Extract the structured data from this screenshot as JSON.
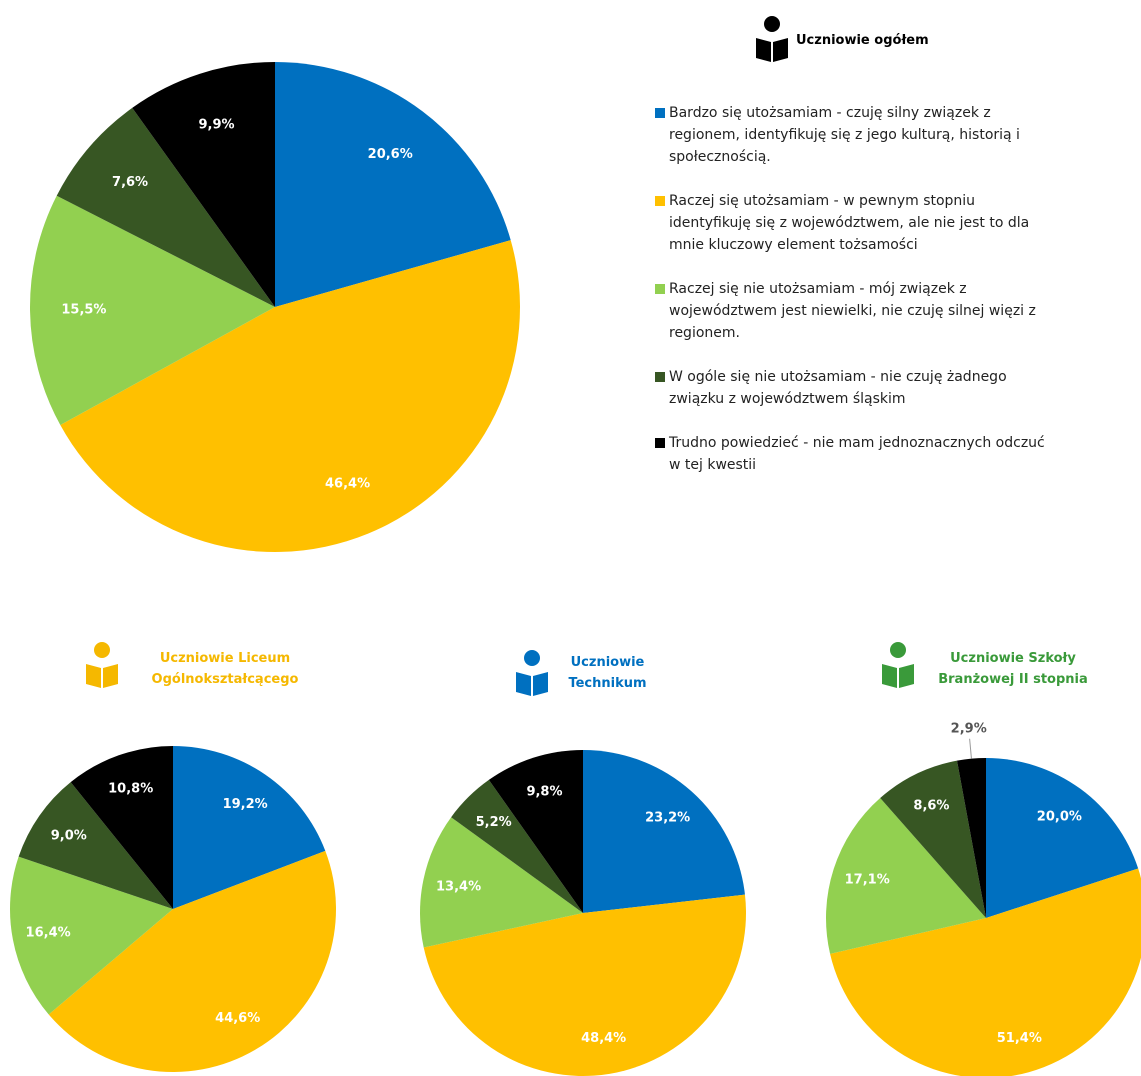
{
  "chart_data": [
    {
      "type": "pie",
      "title": "Uczniowie ogółem",
      "title_color": "#000000",
      "categories": [
        "Bardzo się utożsamiam - czuję silny związek z regionem, identyfikuję się z jego kulturą, historią i społecznością.",
        "Raczej się utożsamiam - w pewnym stopniu identyfikuję się z województwem, ale nie jest to dla mnie kluczowy element tożsamości",
        "Raczej się nie utożsamiam - mój związek z województwem jest niewielki, nie czuję silnej więzi z regionem.",
        "W ogóle się nie utożsamiam - nie czuję żadnego związku z województwem śląskim",
        "Trudno powiedzieć - nie mam jednoznacznych odczuć w tej kwestii"
      ],
      "values": [
        20.6,
        46.4,
        15.5,
        7.6,
        9.9
      ],
      "value_labels": [
        "20,6%",
        "46,4%",
        "15,5%",
        "7,6%",
        "9,9%"
      ],
      "colors": [
        "#0070c0",
        "#ffc000",
        "#92d050",
        "#375623",
        "#000000"
      ]
    },
    {
      "type": "pie",
      "title": "Uczniowie Liceum Ogólnokształcącego",
      "title_color": "#f5b800",
      "values": [
        19.2,
        44.6,
        16.4,
        9.0,
        10.8
      ],
      "value_labels": [
        "19,2%",
        "44,6%",
        "16,4%",
        "9,0%",
        "10,8%"
      ],
      "colors": [
        "#0070c0",
        "#ffc000",
        "#92d050",
        "#375623",
        "#000000"
      ]
    },
    {
      "type": "pie",
      "title": "Uczniowie Technikum",
      "title_color": "#0070c0",
      "values": [
        23.2,
        48.4,
        13.4,
        5.2,
        9.8
      ],
      "value_labels": [
        "23,2%",
        "48,4%",
        "13,4%",
        "5,2%",
        "9,8%"
      ],
      "colors": [
        "#0070c0",
        "#ffc000",
        "#92d050",
        "#375623",
        "#000000"
      ]
    },
    {
      "type": "pie",
      "title": "Uczniowie Szkoły Branżowej II stopnia",
      "title_color": "#3a9a3a",
      "values": [
        20.0,
        51.4,
        17.1,
        8.6,
        2.9
      ],
      "value_labels": [
        "20,0%",
        "51,4%",
        "17,1%",
        "8,6%",
        "2,9%"
      ],
      "colors": [
        "#0070c0",
        "#ffc000",
        "#92d050",
        "#375623",
        "#000000"
      ]
    }
  ]
}
